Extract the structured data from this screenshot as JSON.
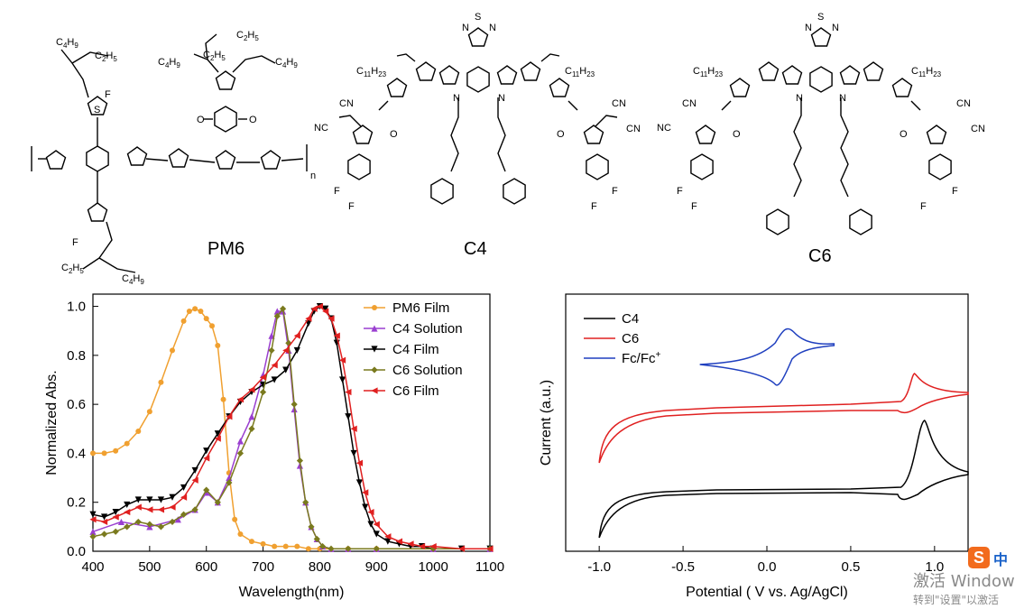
{
  "molecules": {
    "pm6": {
      "name": "PM6",
      "repeat": "n",
      "sub_labels": [
        "C4H9",
        "C2H5",
        "F",
        "S",
        "O"
      ]
    },
    "c4": {
      "name": "C4",
      "alkyl": "C11H23",
      "groups": [
        "CN",
        "O",
        "F",
        "N",
        "S"
      ]
    },
    "c6": {
      "name": "C6",
      "alkyl": "C11H23",
      "groups": [
        "CN",
        "O",
        "F",
        "N",
        "S"
      ]
    }
  },
  "chart_data": [
    {
      "type": "line",
      "xlabel": "Wavelength(nm)",
      "ylabel": "Normalized Abs.",
      "xlim": [
        400,
        1100
      ],
      "ylim": [
        0.0,
        1.05
      ],
      "xticks": [
        400,
        500,
        600,
        700,
        800,
        900,
        1000,
        1100
      ],
      "yticks": [
        0.0,
        0.2,
        0.4,
        0.6,
        0.8,
        1.0
      ],
      "ytick_labels": [
        "0.0",
        "0.2",
        "0.4",
        "0.6",
        "0.8",
        "1.0"
      ],
      "legend_position": "top-right",
      "grid": false,
      "series": [
        {
          "name": "PM6 Film",
          "color": "#f0a030",
          "marker": "circle",
          "x": [
            400,
            420,
            440,
            460,
            480,
            500,
            520,
            540,
            560,
            570,
            580,
            590,
            600,
            610,
            620,
            630,
            640,
            650,
            660,
            680,
            700,
            720,
            740,
            760,
            780,
            800,
            850,
            900,
            1000,
            1100
          ],
          "y": [
            0.4,
            0.4,
            0.41,
            0.44,
            0.49,
            0.57,
            0.69,
            0.82,
            0.94,
            0.98,
            0.99,
            0.98,
            0.95,
            0.92,
            0.84,
            0.62,
            0.32,
            0.13,
            0.07,
            0.04,
            0.03,
            0.02,
            0.02,
            0.02,
            0.01,
            0.01,
            0.01,
            0.01,
            0.01,
            0.01
          ]
        },
        {
          "name": "C4 Solution",
          "color": "#9a3fd0",
          "marker": "triangle-up",
          "x": [
            400,
            450,
            500,
            550,
            580,
            600,
            620,
            640,
            660,
            680,
            700,
            715,
            725,
            735,
            745,
            755,
            765,
            775,
            785,
            795,
            805,
            820,
            850,
            900,
            1000,
            1100
          ],
          "y": [
            0.08,
            0.12,
            0.1,
            0.13,
            0.17,
            0.24,
            0.2,
            0.3,
            0.45,
            0.55,
            0.72,
            0.88,
            0.98,
            0.98,
            0.82,
            0.58,
            0.35,
            0.2,
            0.1,
            0.05,
            0.02,
            0.01,
            0.01,
            0.01,
            0.01,
            0.01
          ]
        },
        {
          "name": "C4 Film",
          "color": "#000000",
          "marker": "triangle-down",
          "x": [
            400,
            420,
            440,
            460,
            480,
            500,
            520,
            540,
            560,
            580,
            600,
            620,
            640,
            660,
            680,
            700,
            720,
            740,
            760,
            780,
            790,
            800,
            810,
            820,
            830,
            840,
            850,
            860,
            870,
            880,
            890,
            900,
            920,
            940,
            960,
            980,
            1000,
            1050,
            1100
          ],
          "y": [
            0.15,
            0.14,
            0.16,
            0.19,
            0.21,
            0.21,
            0.21,
            0.22,
            0.26,
            0.33,
            0.41,
            0.48,
            0.55,
            0.61,
            0.65,
            0.68,
            0.7,
            0.74,
            0.82,
            0.93,
            0.98,
            1.0,
            0.99,
            0.95,
            0.85,
            0.7,
            0.55,
            0.4,
            0.28,
            0.18,
            0.11,
            0.07,
            0.04,
            0.03,
            0.02,
            0.02,
            0.01,
            0.01,
            0.01
          ]
        },
        {
          "name": "C6 Solution",
          "color": "#7a7a1e",
          "marker": "diamond",
          "x": [
            400,
            420,
            440,
            460,
            480,
            500,
            520,
            540,
            560,
            580,
            600,
            620,
            640,
            660,
            680,
            700,
            715,
            725,
            735,
            745,
            755,
            765,
            775,
            785,
            795,
            805,
            820,
            850,
            900,
            1000,
            1100
          ],
          "y": [
            0.06,
            0.07,
            0.08,
            0.1,
            0.12,
            0.11,
            0.1,
            0.12,
            0.15,
            0.17,
            0.25,
            0.2,
            0.28,
            0.4,
            0.5,
            0.65,
            0.82,
            0.96,
            0.99,
            0.85,
            0.6,
            0.37,
            0.2,
            0.1,
            0.05,
            0.02,
            0.01,
            0.01,
            0.01,
            0.01,
            0.01
          ]
        },
        {
          "name": "C6 Film",
          "color": "#e02020",
          "marker": "triangle-left",
          "x": [
            400,
            420,
            440,
            460,
            480,
            500,
            520,
            540,
            560,
            580,
            600,
            620,
            640,
            660,
            680,
            700,
            720,
            740,
            760,
            780,
            790,
            800,
            810,
            820,
            830,
            840,
            850,
            860,
            870,
            880,
            890,
            900,
            920,
            940,
            960,
            980,
            1000,
            1050,
            1100
          ],
          "y": [
            0.13,
            0.12,
            0.14,
            0.16,
            0.18,
            0.17,
            0.17,
            0.18,
            0.22,
            0.29,
            0.38,
            0.46,
            0.55,
            0.62,
            0.66,
            0.71,
            0.76,
            0.82,
            0.88,
            0.95,
            0.99,
            1.0,
            0.98,
            0.95,
            0.88,
            0.78,
            0.65,
            0.5,
            0.36,
            0.24,
            0.16,
            0.11,
            0.06,
            0.04,
            0.03,
            0.02,
            0.02,
            0.01,
            0.01
          ]
        }
      ]
    },
    {
      "type": "line",
      "xlabel": "Potential ( V vs. Ag/AgCl)",
      "ylabel": "Current (a.u.)",
      "xlim": [
        -1.2,
        1.2
      ],
      "xticks": [
        -1.0,
        -0.5,
        0.0,
        0.5,
        1.0
      ],
      "xtick_labels": [
        "-1.0",
        "-0.5",
        "0.0",
        "0.5",
        "1.0"
      ],
      "legend_position": "top-left",
      "grid": false,
      "series": [
        {
          "name": "C4",
          "color": "#000000"
        },
        {
          "name": "C6",
          "color": "#e02020"
        },
        {
          "name": "Fc/Fc+",
          "legend_text": "Fc/Fc",
          "superscript": "+",
          "color": "#1f3fbf"
        }
      ]
    }
  ],
  "watermark": {
    "line1": "激活 Window",
    "line2": "转到\"设置\"以激活"
  },
  "ime": {
    "logo": "S",
    "text": "中"
  }
}
